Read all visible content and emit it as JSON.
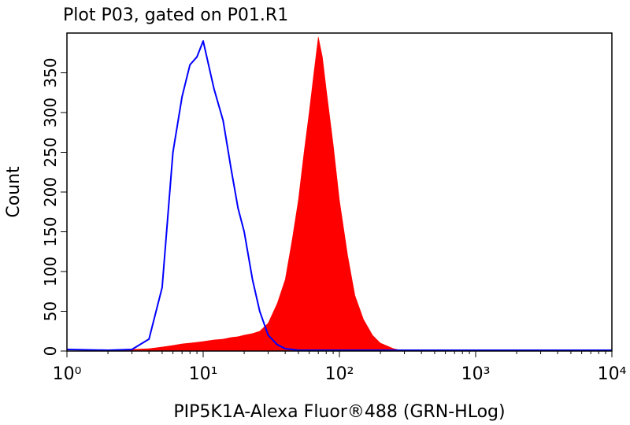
{
  "chart_data": {
    "type": "area",
    "title": "Plot P03, gated on P01.R1",
    "xlabel": "PIP5K1A-Alexa Fluor®488 (GRN-HLog)",
    "ylabel": "Count",
    "xscale": "log",
    "xlim": [
      1,
      10000
    ],
    "ylim": [
      0,
      400
    ],
    "xticks": [
      {
        "value": 1,
        "label": "10⁰"
      },
      {
        "value": 10,
        "label": "10¹"
      },
      {
        "value": 100,
        "label": "10²"
      },
      {
        "value": 1000,
        "label": "10³"
      },
      {
        "value": 10000,
        "label": "10⁴"
      }
    ],
    "yticks": [
      0,
      50,
      100,
      150,
      200,
      250,
      300,
      350
    ],
    "x": [
      1,
      2,
      3,
      4,
      5,
      6,
      7,
      8,
      9,
      10,
      12,
      14,
      16,
      18,
      20,
      23,
      26,
      30,
      35,
      40,
      45,
      50,
      55,
      60,
      65,
      70,
      75,
      80,
      90,
      100,
      115,
      130,
      150,
      175,
      200,
      250,
      300,
      500,
      1000,
      10000
    ],
    "series": [
      {
        "color": "#ff0000",
        "filled": true,
        "values": [
          0,
          1,
          2,
          3,
          5,
          7,
          9,
          10,
          11,
          12,
          14,
          15,
          17,
          18,
          20,
          22,
          25,
          35,
          60,
          90,
          140,
          190,
          250,
          300,
          350,
          395,
          370,
          330,
          260,
          190,
          120,
          70,
          40,
          20,
          10,
          3,
          0,
          0,
          0,
          0
        ]
      },
      {
        "color": "#0000ff",
        "filled": false,
        "values": [
          2,
          1,
          2,
          15,
          80,
          250,
          320,
          360,
          370,
          390,
          330,
          290,
          230,
          180,
          150,
          90,
          50,
          20,
          8,
          3,
          2,
          1,
          1,
          1,
          1,
          1,
          1,
          1,
          1,
          1,
          1,
          1,
          1,
          1,
          1,
          1,
          1,
          1,
          1,
          1
        ]
      }
    ]
  }
}
